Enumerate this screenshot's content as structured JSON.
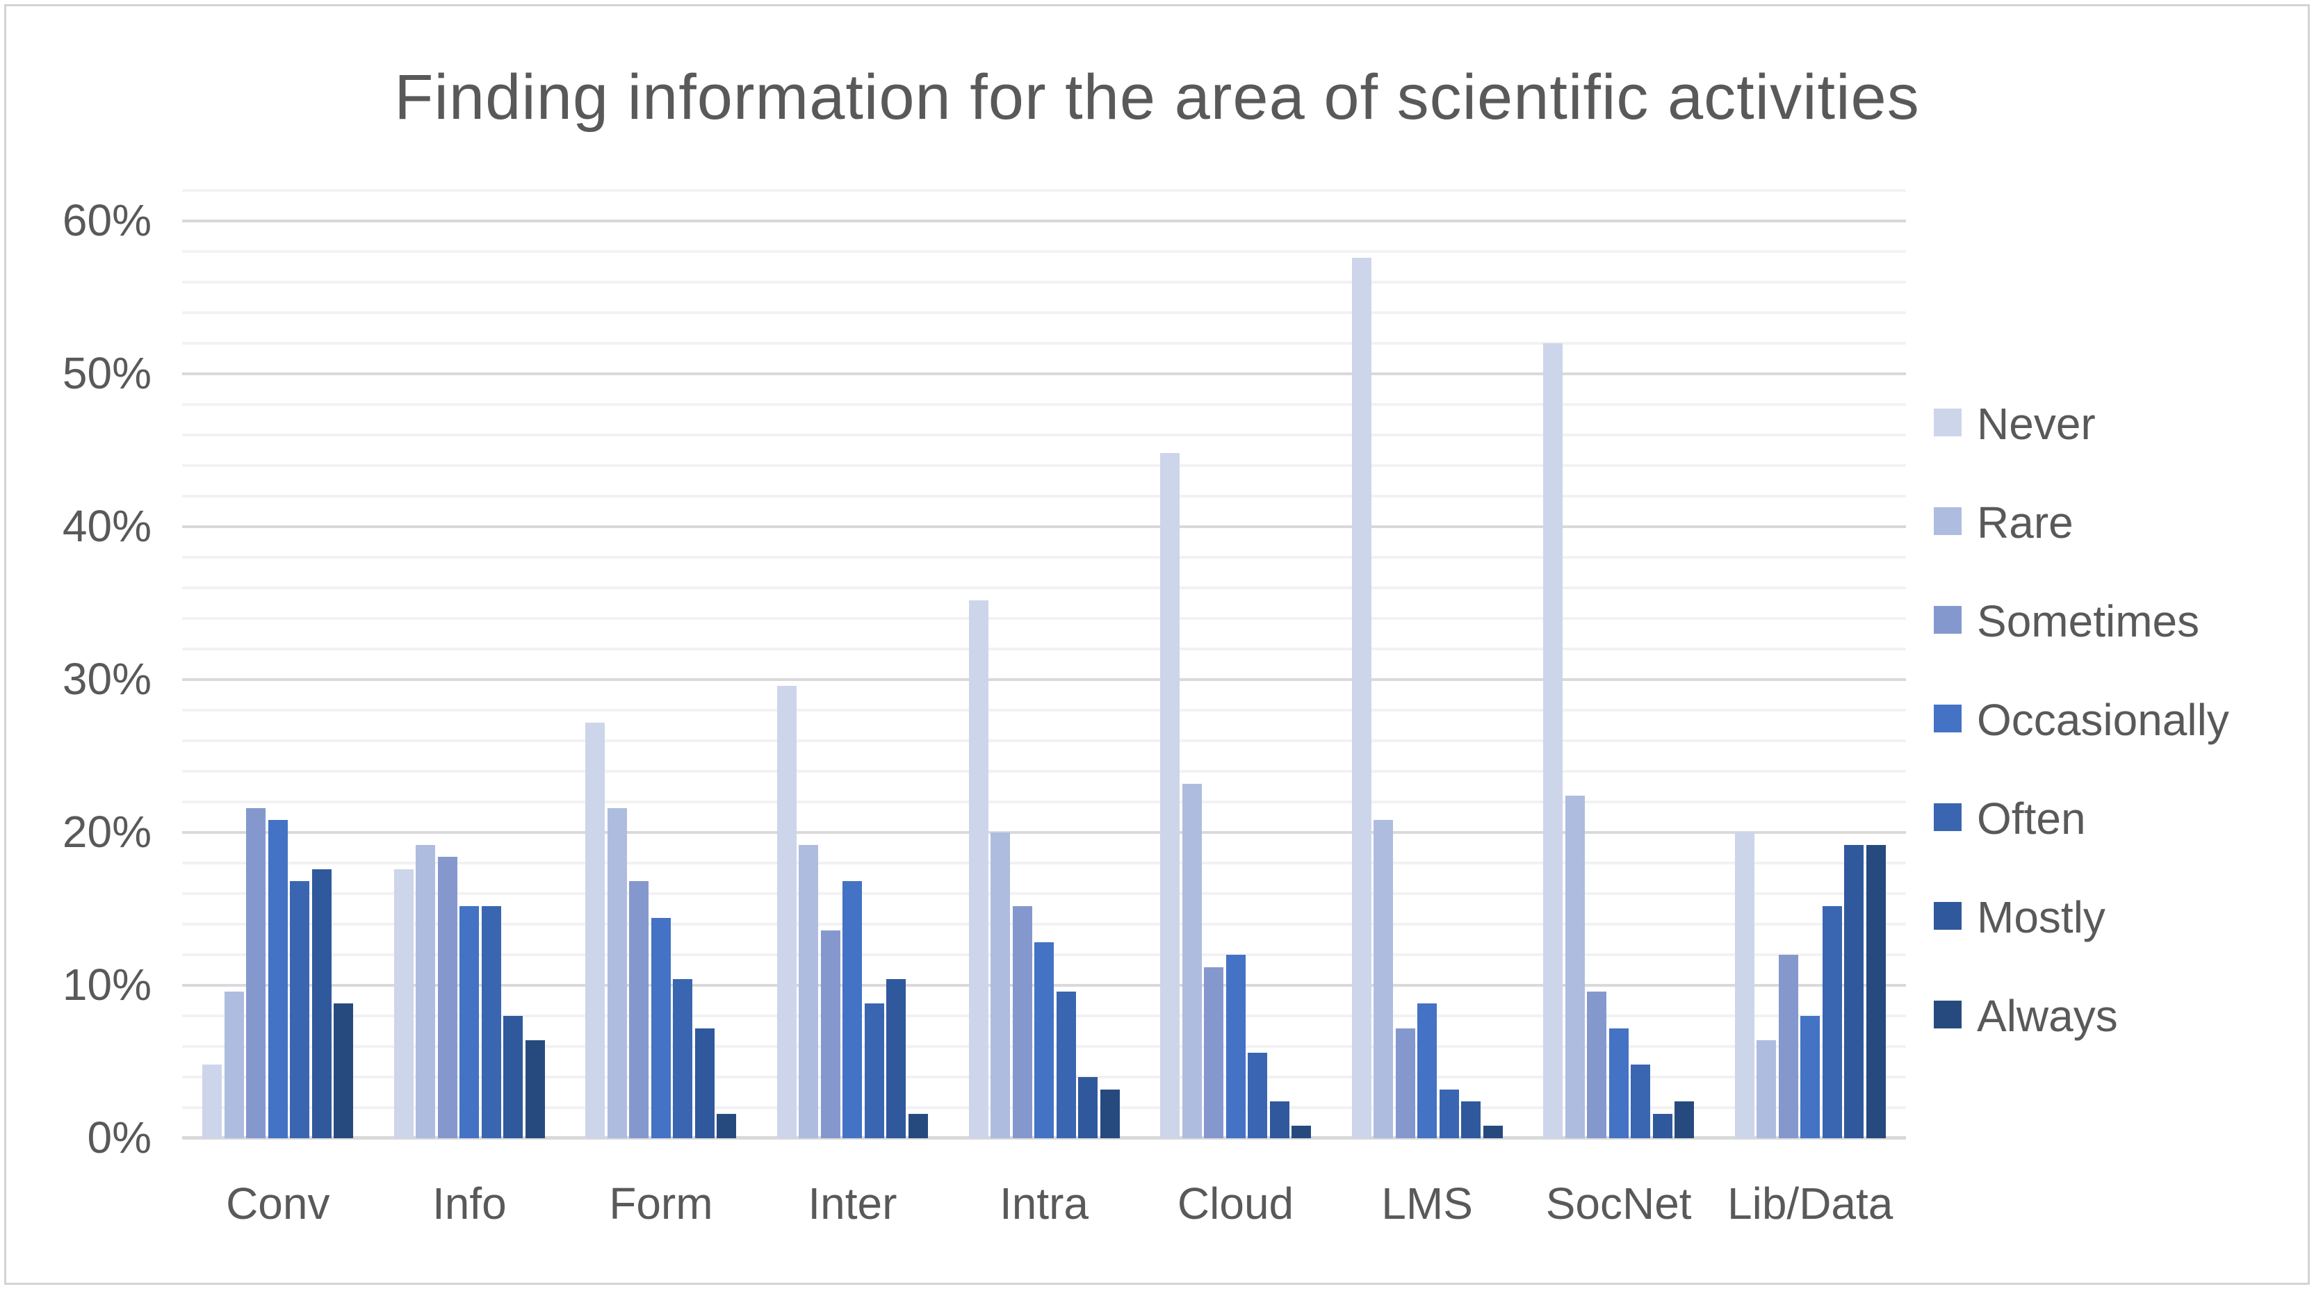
{
  "chart_data": {
    "type": "bar",
    "title": "Finding information for the area of scientific activities",
    "categories": [
      "Conv",
      "Info",
      "Form",
      "Inter",
      "Intra",
      "Cloud",
      "LMS",
      "SocNet",
      "Lib/Data"
    ],
    "series": [
      {
        "name": "Never",
        "color": "#ccd5ea",
        "values": [
          4.8,
          17.6,
          27.2,
          29.6,
          35.2,
          44.8,
          57.6,
          52.0,
          20.0
        ]
      },
      {
        "name": "Rare",
        "color": "#aebcdf",
        "values": [
          9.6,
          19.2,
          21.6,
          19.2,
          20.0,
          23.2,
          20.8,
          22.4,
          6.4
        ]
      },
      {
        "name": "Sometimes",
        "color": "#8598ce",
        "values": [
          21.6,
          18.4,
          16.8,
          13.6,
          15.2,
          11.2,
          7.2,
          9.6,
          12.0
        ]
      },
      {
        "name": "Occasionally",
        "color": "#4472c4",
        "values": [
          20.8,
          15.2,
          14.4,
          16.8,
          12.8,
          12.0,
          8.8,
          7.2,
          8.0
        ]
      },
      {
        "name": "Often",
        "color": "#3a66b1",
        "values": [
          16.8,
          15.2,
          10.4,
          8.8,
          9.6,
          5.6,
          3.2,
          4.8,
          15.2
        ]
      },
      {
        "name": "Mostly",
        "color": "#30589c",
        "values": [
          17.6,
          8.0,
          7.2,
          10.4,
          4.0,
          2.4,
          2.4,
          1.6,
          19.2
        ]
      },
      {
        "name": "Always",
        "color": "#274a7e",
        "values": [
          8.8,
          6.4,
          1.6,
          1.6,
          3.2,
          0.8,
          0.8,
          2.4,
          19.2
        ]
      }
    ],
    "y_axis": {
      "tick_labels": [
        "0%",
        "10%",
        "20%",
        "30%",
        "40%",
        "50%",
        "60%"
      ],
      "min": 0,
      "max": 62,
      "major_step": 10,
      "minor_step": 2
    },
    "legend_position": "right",
    "grid": "on"
  },
  "colors": {
    "text": "#595959",
    "minor_grid": "#f2f2f2",
    "major_grid": "#d9d9d9",
    "axis_line": "#d9d9d9",
    "frame_border": "#d4d4d4",
    "background": "#ffffff"
  }
}
